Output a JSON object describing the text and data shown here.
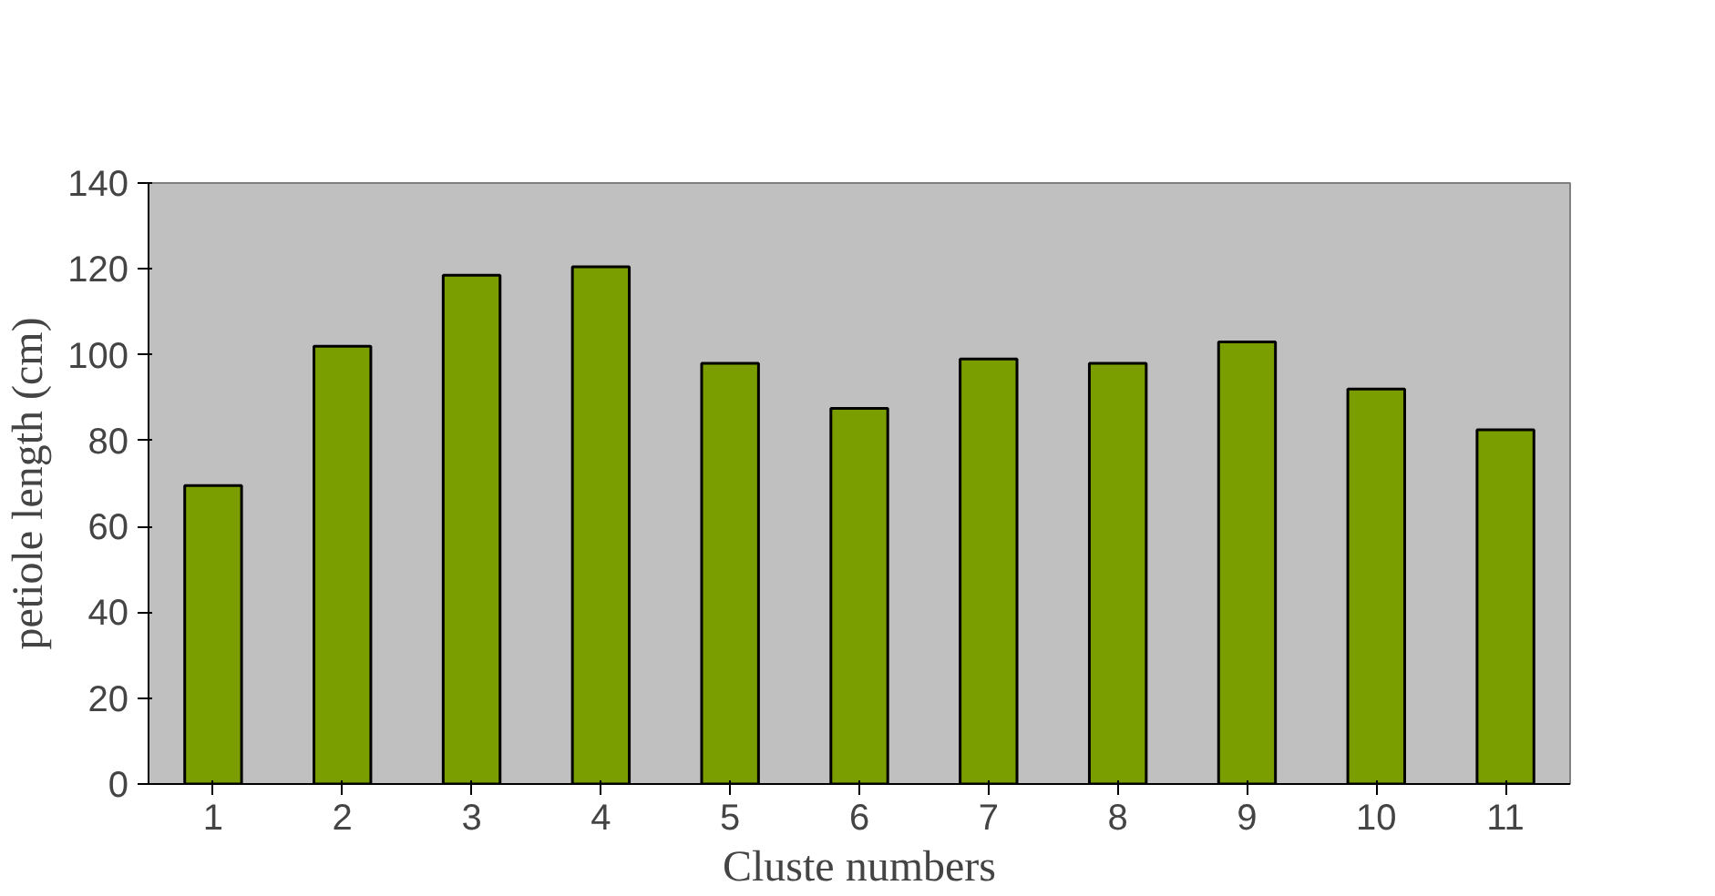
{
  "chart_data": {
    "type": "bar",
    "xlabel": "Cluste numbers",
    "ylabel": "petiole length (cm)",
    "categories": [
      "1",
      "2",
      "3",
      "4",
      "5",
      "6",
      "7",
      "8",
      "9",
      "10",
      "11"
    ],
    "values": [
      69.5,
      102,
      118.5,
      120.5,
      98,
      87.5,
      99,
      98,
      103,
      92,
      82.5
    ],
    "color": "#7a9e00",
    "ylim": [
      0,
      140
    ],
    "yticks": [
      0,
      20,
      40,
      60,
      80,
      100,
      120,
      140
    ],
    "grid": false
  }
}
